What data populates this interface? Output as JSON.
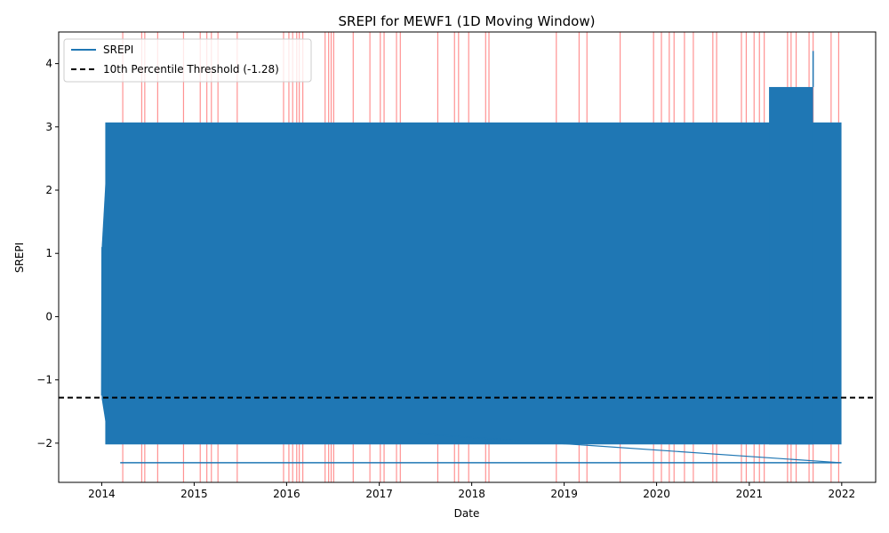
{
  "chart_data": {
    "type": "line",
    "title": "SREPI for MEWF1 (1D Moving Window)",
    "xlabel": "Date",
    "ylabel": "SREPI",
    "x_ticks": [
      "2014",
      "2015",
      "2016",
      "2017",
      "2018",
      "2019",
      "2020",
      "2021",
      "2022"
    ],
    "y_ticks": [
      "−2",
      "−1",
      "0",
      "1",
      "2",
      "3",
      "4"
    ],
    "xlim": [
      "2013-07-15",
      "2022-05-15"
    ],
    "ylim": [
      -2.62,
      4.5
    ],
    "grid": false,
    "legend_position": "top-left",
    "series": [
      {
        "name": "SREPI",
        "color": "#1f77b4",
        "x": [
          "2014-01-01",
          "2014-01-01",
          "2014-01-01",
          "2014-01-01",
          "2014-01-01",
          "2014-01-01",
          "2014-01-01",
          "2014-01-01",
          "2014-01-01",
          "2014-01-02"
        ],
        "y": [
          -1.25,
          1.1,
          -1.0,
          0.5,
          -0.8,
          0.9,
          -1.2,
          0.3,
          -0.6,
          1.0
        ],
        "dense_band": {
          "x_start": "2014-01-01",
          "x_end": "2021-12-31",
          "y_min": -2.02,
          "y_max": 3.07
        },
        "upper_extension": {
          "x_start": "2021-03-20",
          "x_end": "2021-09-10",
          "y_min": -2.02,
          "y_max": 3.63
        },
        "spike": {
          "x": "2021-09-10",
          "y": 4.2
        },
        "lower_envelope": [
          {
            "x": "2014-03-15",
            "y": -2.31
          },
          {
            "x": "2021-12-31",
            "y": -2.31
          }
        ],
        "diagonal": [
          {
            "x": "2017-06-01",
            "y": -1.85
          },
          {
            "x": "2021-12-31",
            "y": -2.31
          }
        ]
      },
      {
        "name": "10th Percentile Threshold (-1.28)",
        "color": "#000000",
        "style": "dashed",
        "y": -1.28
      }
    ],
    "highlight_dates": [
      "2014-03-25",
      "2014-06-08",
      "2014-06-20",
      "2014-08-10",
      "2014-11-20",
      "2015-01-25",
      "2015-02-20",
      "2015-03-10",
      "2015-04-05",
      "2015-06-20",
      "2015-12-20",
      "2016-01-10",
      "2016-01-25",
      "2016-02-10",
      "2016-02-20",
      "2016-03-05",
      "2016-06-01",
      "2016-06-15",
      "2016-06-25",
      "2016-07-05",
      "2016-09-20",
      "2016-11-25",
      "2017-01-05",
      "2017-01-20",
      "2017-03-10",
      "2017-03-25",
      "2017-08-20",
      "2017-10-25",
      "2017-11-10",
      "2017-12-20",
      "2018-02-25",
      "2018-03-10",
      "2018-12-01",
      "2019-03-01",
      "2019-04-01",
      "2019-08-10",
      "2019-12-20",
      "2020-01-20",
      "2020-02-20",
      "2020-03-10",
      "2020-04-20",
      "2020-05-25",
      "2020-08-10",
      "2020-08-25",
      "2020-12-01",
      "2020-12-20",
      "2021-01-20",
      "2021-02-10",
      "2021-03-01",
      "2021-06-01",
      "2021-06-15",
      "2021-07-05",
      "2021-08-25",
      "2021-09-10",
      "2021-11-20",
      "2021-12-20"
    ],
    "highlight_color": "#ff7f7f"
  }
}
